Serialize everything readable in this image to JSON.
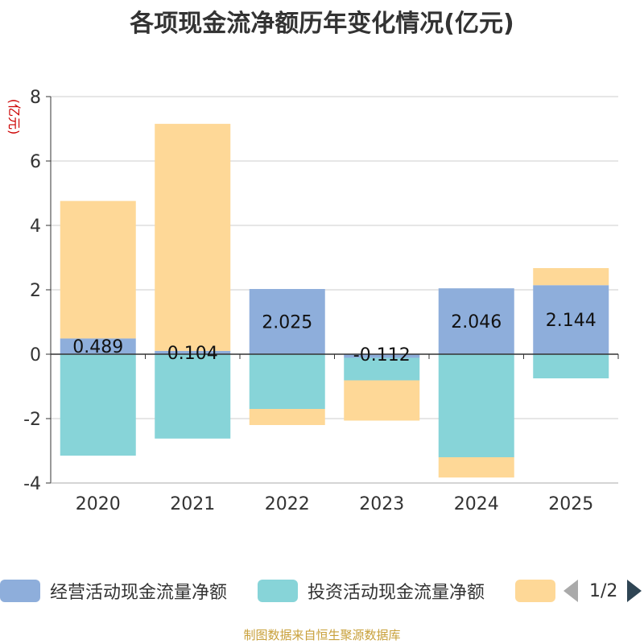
{
  "chart_data": {
    "type": "bar",
    "stacked": true,
    "title": "各项现金流净额历年变化情况(亿元)",
    "ylabel": "(亿元)",
    "ylim": [
      -4,
      8
    ],
    "yticks": [
      -4,
      -2,
      0,
      2,
      4,
      6,
      8
    ],
    "categories": [
      "2020",
      "2021",
      "2022",
      "2023",
      "2024",
      "2025"
    ],
    "series": [
      {
        "name": "经营活动现金流量净额",
        "color": "#8eaedb",
        "values": [
          0.489,
          0.104,
          2.025,
          -0.112,
          2.046,
          2.144
        ],
        "labels": [
          "0.489",
          "0.104",
          "2.025",
          "-0.112",
          "2.046",
          "2.144"
        ]
      },
      {
        "name": "投资活动现金流量净额",
        "color": "#87d4d8",
        "values": [
          -3.15,
          -2.62,
          -1.7,
          -0.7,
          -3.2,
          -0.75
        ]
      },
      {
        "name": "",
        "color": "#fed897",
        "values": [
          4.27,
          7.05,
          -0.5,
          -1.25,
          -0.63,
          0.53
        ]
      }
    ]
  },
  "legend": {
    "page": "1/2"
  },
  "footer": {
    "source": "制图数据来自恒生聚源数据库"
  }
}
